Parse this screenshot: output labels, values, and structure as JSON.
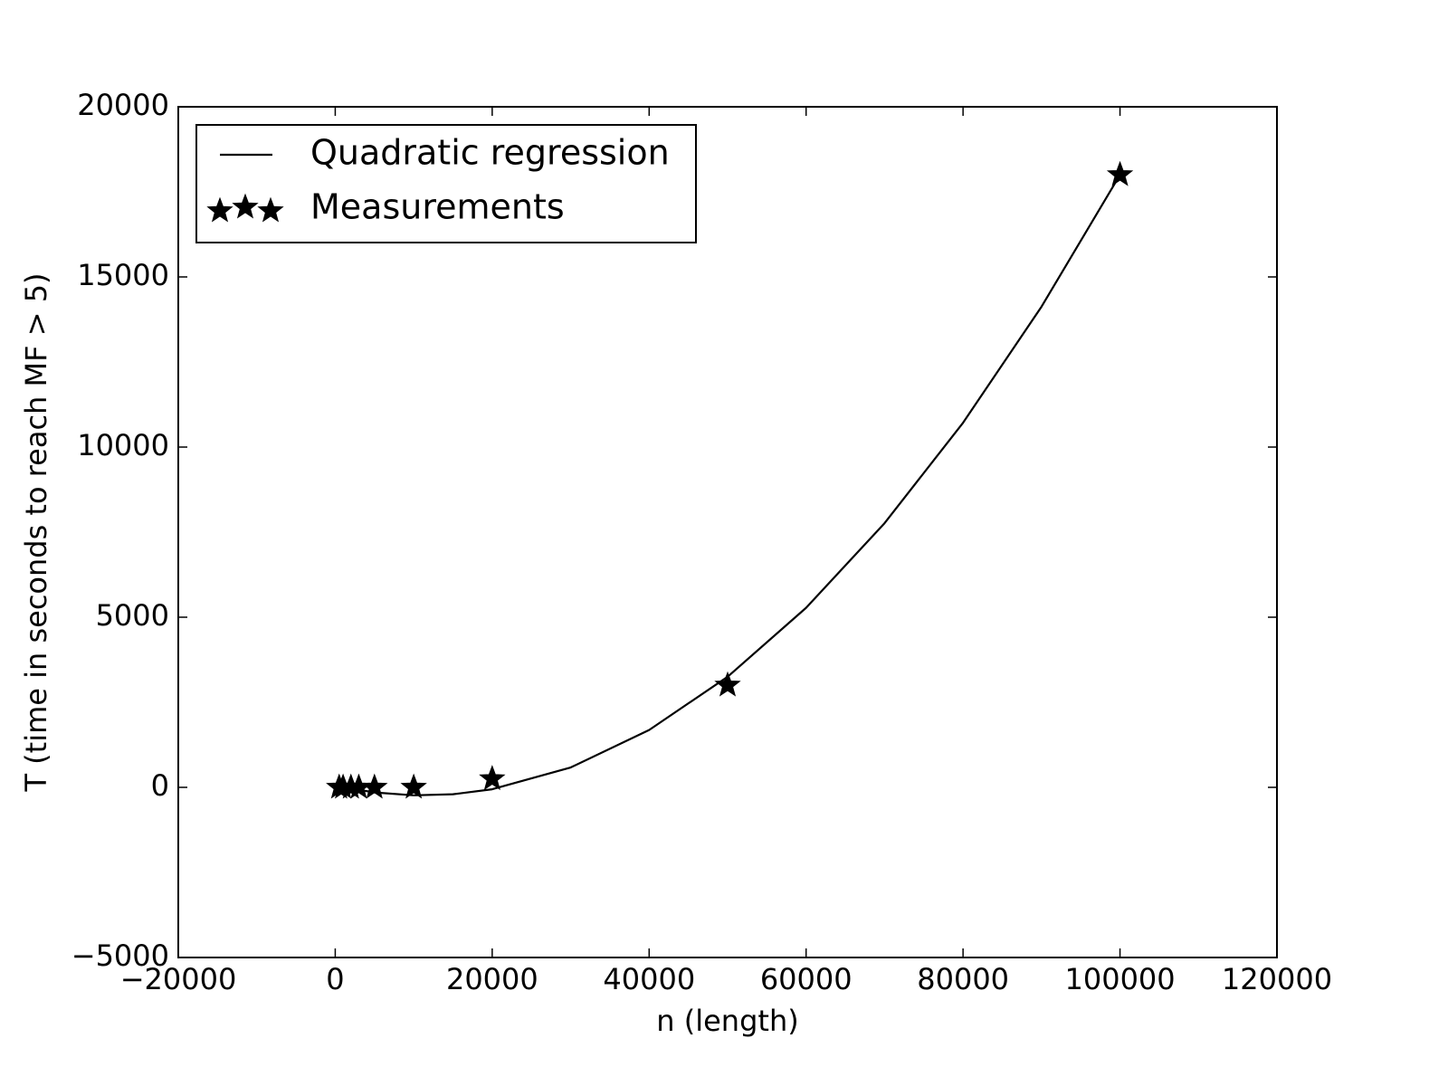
{
  "chart_data": {
    "type": "line",
    "xlabel": "n (length)",
    "ylabel": "T (time in seconds to reach MF > 5)",
    "xlim": [
      -20000,
      120000
    ],
    "ylim": [
      -5000,
      20000
    ],
    "xticks": [
      {
        "value": -20000,
        "label": "−20000"
      },
      0,
      20000,
      40000,
      60000,
      80000,
      100000,
      120000
    ],
    "yticks": [
      {
        "value": -5000,
        "label": "−5000"
      },
      0,
      5000,
      10000,
      15000,
      20000
    ],
    "grid": false,
    "legend": "upper left",
    "series": [
      {
        "name": "Quadratic regression",
        "color": "#000000",
        "marker": "none",
        "x": [
          500,
          5000,
          10000,
          15000,
          20000,
          30000,
          40000,
          50000,
          60000,
          70000,
          80000,
          90000,
          100000
        ],
        "values": [
          25,
          -150,
          -234,
          -203,
          -56,
          584,
          1686,
          3250,
          5276,
          7764,
          10714,
          14126,
          18000
        ]
      },
      {
        "name": "Measurements",
        "color": "#000000",
        "marker": "star",
        "x": [
          500,
          1000,
          2000,
          3000,
          5000,
          10000,
          20000,
          50000,
          100000
        ],
        "values": [
          0,
          0,
          0,
          0,
          0,
          0,
          250,
          3000,
          18000
        ]
      }
    ]
  }
}
